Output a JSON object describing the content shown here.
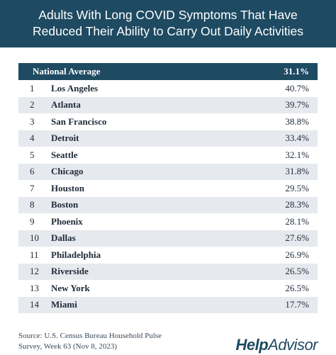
{
  "title": {
    "line1": "Adults With Long COVID Symptoms That Have",
    "line2": "Reduced Their Ability to Carry Out Daily Activities"
  },
  "national": {
    "label": "National Average",
    "value": "31.1%"
  },
  "rows": [
    {
      "rank": "1",
      "city": "Los Angeles",
      "value": "40.7%"
    },
    {
      "rank": "2",
      "city": "Atlanta",
      "value": "39.7%"
    },
    {
      "rank": "3",
      "city": "San Francisco",
      "value": "38.8%"
    },
    {
      "rank": "4",
      "city": "Detroit",
      "value": "33.4%"
    },
    {
      "rank": "5",
      "city": "Seattle",
      "value": "32.1%"
    },
    {
      "rank": "6",
      "city": "Chicago",
      "value": "31.8%"
    },
    {
      "rank": "7",
      "city": "Houston",
      "value": "29.5%"
    },
    {
      "rank": "8",
      "city": "Boston",
      "value": "28.3%"
    },
    {
      "rank": "9",
      "city": "Phoenix",
      "value": "28.1%"
    },
    {
      "rank": "10",
      "city": "Dallas",
      "value": "27.6%"
    },
    {
      "rank": "11",
      "city": "Philadelphia",
      "value": "26.9%"
    },
    {
      "rank": "12",
      "city": "Riverside",
      "value": "26.5%"
    },
    {
      "rank": "13",
      "city": "New York",
      "value": "26.5%"
    },
    {
      "rank": "14",
      "city": "Miami",
      "value": "17.7%"
    }
  ],
  "source": {
    "line1": "Source: U.S. Census Bureau Household Pulse",
    "line2": "Survey, Week 63 (Nov 8, 2023)"
  },
  "logo": {
    "part1": "Help",
    "part2": "Advisor"
  },
  "colors": {
    "header": "#1e4a62",
    "alt_row": "#e6e9ee",
    "text": "#1f2a38"
  }
}
